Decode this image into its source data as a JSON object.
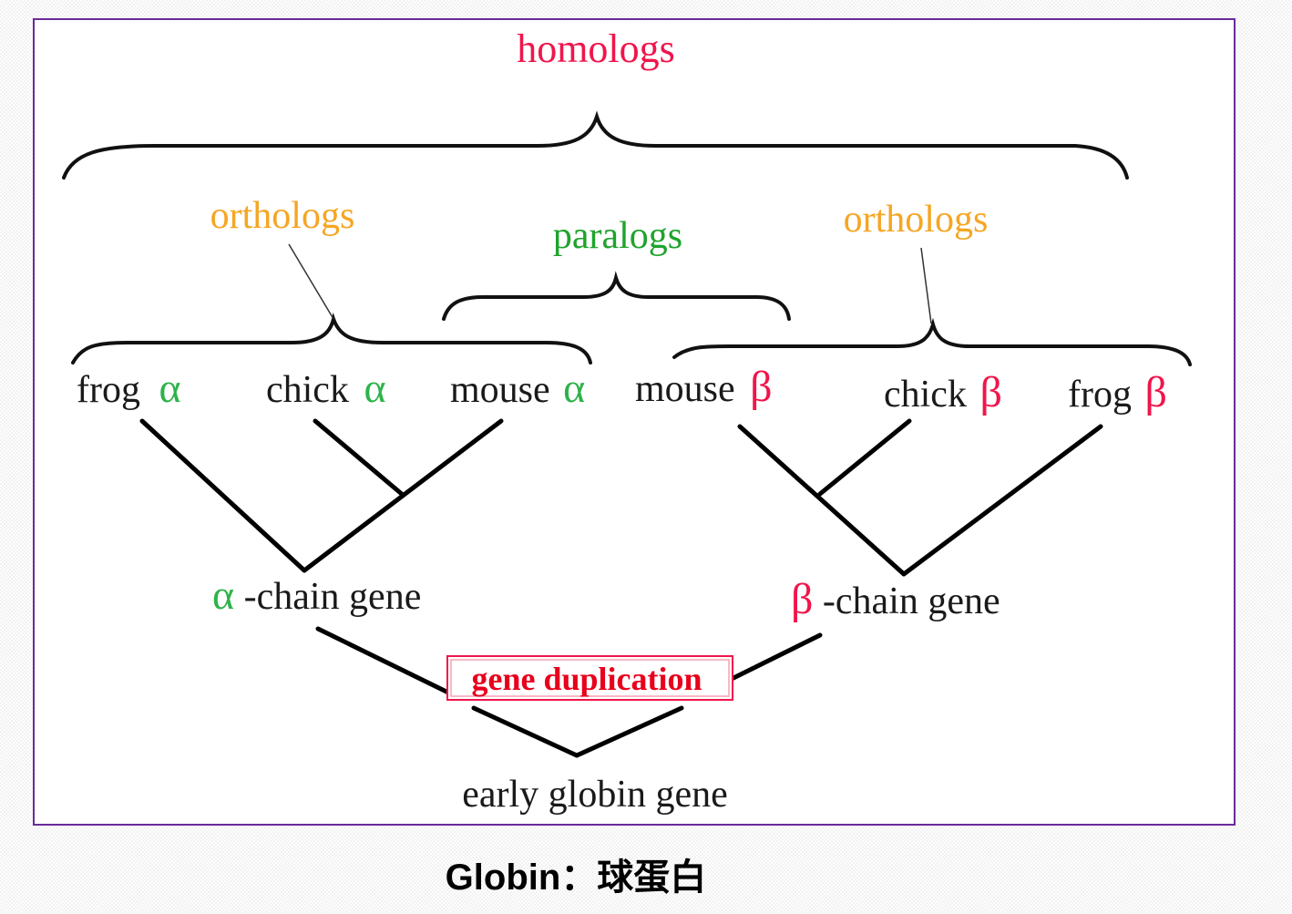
{
  "labels": {
    "homologs": "homologs",
    "orthologs_left": "orthologs",
    "paralogs": "paralogs",
    "orthologs_right": "orthologs",
    "frog_alpha_name": "frog",
    "chick_alpha_name": "chick",
    "mouse_alpha_name": "mouse",
    "mouse_beta_name": "mouse",
    "chick_beta_name": "chick",
    "frog_beta_name": "frog",
    "alpha": "α",
    "beta": "β",
    "alpha_chain_suffix": "-chain gene",
    "beta_chain_suffix": "-chain gene",
    "gene_duplication": "gene duplication",
    "early_globin_gene": "early globin gene"
  },
  "caption": "Globin：球蛋白",
  "colors": {
    "homologs": "#f0154b",
    "orthologs": "#f5a623",
    "paralogs": "#1fa32c",
    "alpha": "#2db34a",
    "beta": "#f0154b",
    "gene_duplication": "#e8001c",
    "text": "#1a1a1a",
    "frame": "#6a2a9c"
  }
}
